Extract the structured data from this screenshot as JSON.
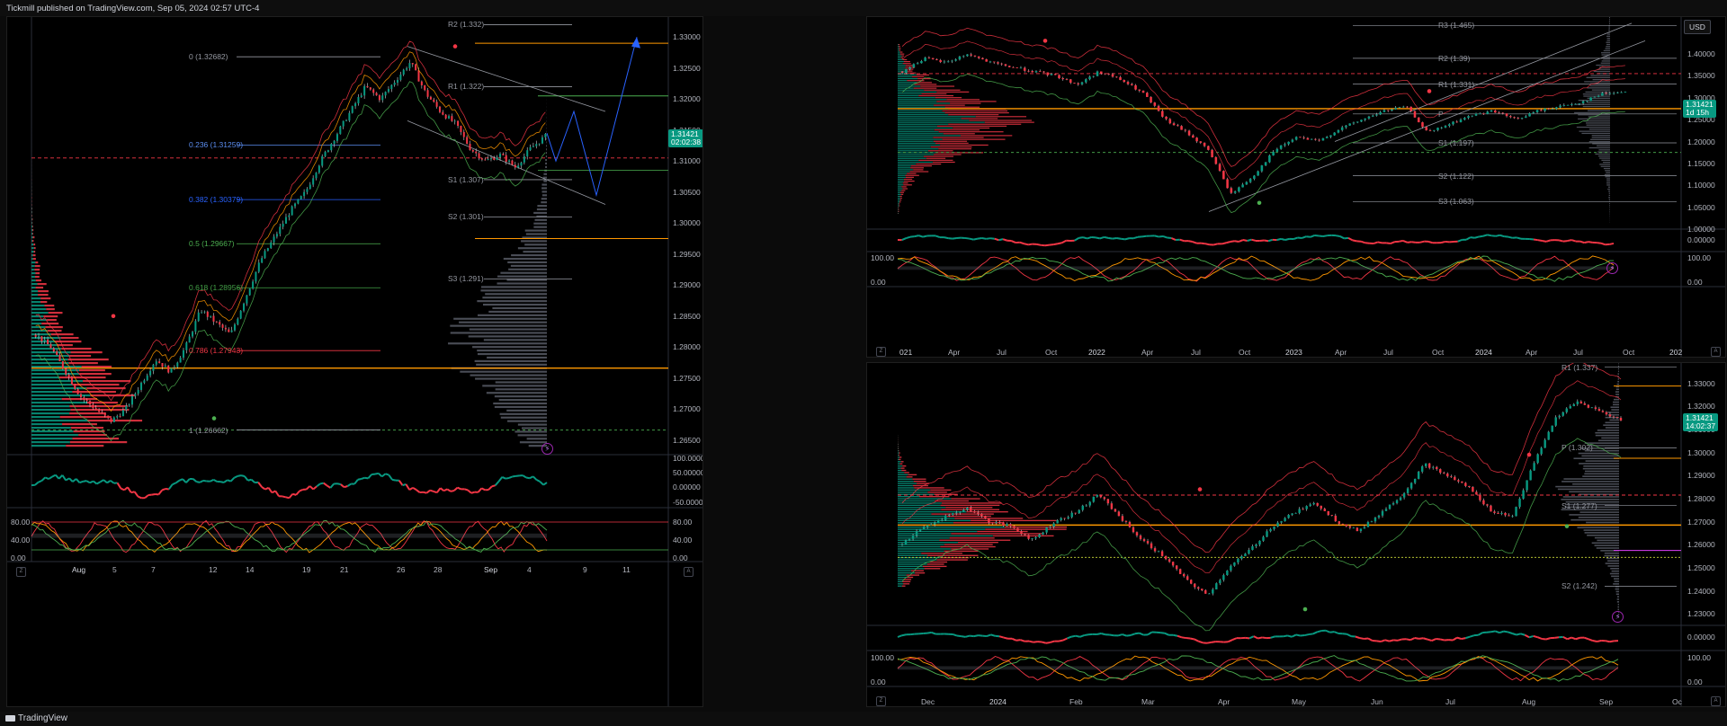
{
  "header": {
    "published_text": "Tickmill published on TradingView.com, Sep 05, 2024 02:57 UTC-4"
  },
  "footer": {
    "brand_text": "TradingView"
  },
  "colors": {
    "bull": "#089981",
    "bear": "#f23645",
    "orange": "#ff9800",
    "blue": "#2962ff",
    "green_line": "#4caf50",
    "grey": "#787b86"
  },
  "left_chart": {
    "price_axis": [
      "1.33000",
      "1.32500",
      "1.32000",
      "1.31500",
      "1.31000",
      "1.30500",
      "1.30000",
      "1.29500",
      "1.29000",
      "1.28500",
      "1.28000",
      "1.27500",
      "1.27000",
      "1.26500"
    ],
    "current_price": "1.31421",
    "countdown": "02:02:38",
    "time_axis": [
      "Aug",
      "5",
      "7",
      "12",
      "14",
      "19",
      "21",
      "26",
      "28",
      "Sep",
      "4",
      "9",
      "11"
    ],
    "fib_levels": [
      {
        "label": "0 (1.32682)",
        "color": "#9598a1"
      },
      {
        "label": "0.236 (1.31259)",
        "color": "#5b8def"
      },
      {
        "label": "0.382 (1.30379)",
        "color": "#2962ff"
      },
      {
        "label": "0.5 (1.29667)",
        "color": "#4caf50"
      },
      {
        "label": "0.618 (1.28956)",
        "color": "#43a047"
      },
      {
        "label": "0.786 (1.27943)",
        "color": "#f23645"
      },
      {
        "label": "1 (1.26662)",
        "color": "#9598a1"
      }
    ],
    "pivots": [
      {
        "label": "R2 (1.332)"
      },
      {
        "label": "R1 (1.322)"
      },
      {
        "label": "S1 (1.307)"
      },
      {
        "label": "S2 (1.301)"
      },
      {
        "label": "S3 (1.291)"
      }
    ],
    "osc1_axis": [
      "100.00000",
      "50.00000",
      "0.00000",
      "-50.00000"
    ],
    "osc2_axis": [
      "80.00",
      "40.00",
      "0.00"
    ],
    "osc2_left": [
      "80.00",
      "40.00",
      "0.00"
    ]
  },
  "right_top_chart": {
    "currency": "USD",
    "price_axis": [
      "1.40000",
      "1.35000",
      "1.30000",
      "1.25000",
      "1.20000",
      "1.15000",
      "1.10000",
      "1.05000",
      "1.00000"
    ],
    "current_price": "1.31421",
    "countdown": "1d 15h",
    "pivots": [
      {
        "label": "R3 (1.465)"
      },
      {
        "label": "R2 (1.39)"
      },
      {
        "label": "R1 (1.331)"
      },
      {
        "label": "P"
      },
      {
        "label": "S1 (1.197)"
      },
      {
        "label": "S2 (1.122)"
      },
      {
        "label": "S3 (1.063)"
      }
    ],
    "time_axis": [
      "021",
      "Apr",
      "Jul",
      "Oct",
      "2022",
      "Apr",
      "Jul",
      "Oct",
      "2023",
      "Apr",
      "Jul",
      "Oct",
      "2024",
      "Apr",
      "Jul",
      "Oct",
      "202"
    ],
    "osc1_axis": [
      "0.00000"
    ],
    "osc2_axis": [
      "100.00",
      "0.00"
    ],
    "osc2_left": [
      "100.00",
      "0.00"
    ]
  },
  "right_bottom_chart": {
    "price_axis": [
      "1.33000",
      "1.32000",
      "1.31000",
      "1.30000",
      "1.29000",
      "1.28000",
      "1.27000",
      "1.26000",
      "1.25000",
      "1.24000",
      "1.23000"
    ],
    "current_price": "1.31421",
    "countdown": "14:02:37",
    "pivots": [
      {
        "label": "R1 (1.337)"
      },
      {
        "label": "P (1.302)"
      },
      {
        "label": "S1 (1.277)"
      },
      {
        "label": "S2 (1.242)"
      }
    ],
    "time_axis": [
      "Dec",
      "2024",
      "Feb",
      "Mar",
      "Apr",
      "May",
      "Jun",
      "Jul",
      "Aug",
      "Sep",
      "Oc"
    ],
    "osc1_axis": [
      "0.00000"
    ],
    "osc2_axis": [
      "100.00",
      "0.00"
    ],
    "osc2_left": [
      "100.00",
      "0.00"
    ]
  },
  "chart_data": [
    {
      "type": "candlestick",
      "title": "",
      "timeframe": "1H",
      "x_labels": [
        "Aug",
        "5",
        "7",
        "12",
        "14",
        "19",
        "21",
        "26",
        "28",
        "Sep",
        "4"
      ],
      "y_range": [
        1.2625,
        1.3325
      ],
      "close_path": [
        1.282,
        1.28,
        1.276,
        1.272,
        1.27,
        1.268,
        1.27,
        1.274,
        1.278,
        1.276,
        1.28,
        1.286,
        1.284,
        1.282,
        1.288,
        1.294,
        1.298,
        1.302,
        1.305,
        1.31,
        1.314,
        1.318,
        1.322,
        1.32,
        1.323,
        1.326,
        1.321,
        1.318,
        1.316,
        1.312,
        1.31,
        1.311,
        1.309,
        1.312,
        1.314
      ],
      "last": 1.31421
    },
    {
      "type": "candlestick",
      "title": "",
      "timeframe": "1W",
      "x_labels": [
        "021",
        "Apr",
        "Jul",
        "Oct",
        "2022",
        "Apr",
        "Jul",
        "Oct",
        "2023",
        "Apr",
        "Jul",
        "Oct",
        "2024",
        "Apr",
        "Jul",
        "Oct"
      ],
      "y_range": [
        1.0,
        1.48
      ],
      "close_path": [
        1.36,
        1.39,
        1.38,
        1.4,
        1.38,
        1.37,
        1.36,
        1.35,
        1.33,
        1.36,
        1.34,
        1.31,
        1.25,
        1.22,
        1.18,
        1.08,
        1.12,
        1.18,
        1.21,
        1.2,
        1.23,
        1.25,
        1.27,
        1.28,
        1.22,
        1.24,
        1.26,
        1.27,
        1.25,
        1.27,
        1.28,
        1.29,
        1.31,
        1.314
      ],
      "last": 1.31421
    },
    {
      "type": "candlestick",
      "title": "",
      "timeframe": "1D",
      "x_labels": [
        "Dec",
        "2024",
        "Feb",
        "Mar",
        "Apr",
        "May",
        "Jun",
        "Jul",
        "Aug",
        "Sep"
      ],
      "y_range": [
        1.225,
        1.338
      ],
      "close_path": [
        1.26,
        1.268,
        1.272,
        1.276,
        1.27,
        1.268,
        1.262,
        1.27,
        1.274,
        1.282,
        1.272,
        1.262,
        1.255,
        1.245,
        1.238,
        1.25,
        1.258,
        1.268,
        1.274,
        1.278,
        1.27,
        1.266,
        1.274,
        1.282,
        1.295,
        1.29,
        1.285,
        1.275,
        1.272,
        1.295,
        1.315,
        1.322,
        1.318,
        1.314
      ],
      "last": 1.31421
    }
  ]
}
